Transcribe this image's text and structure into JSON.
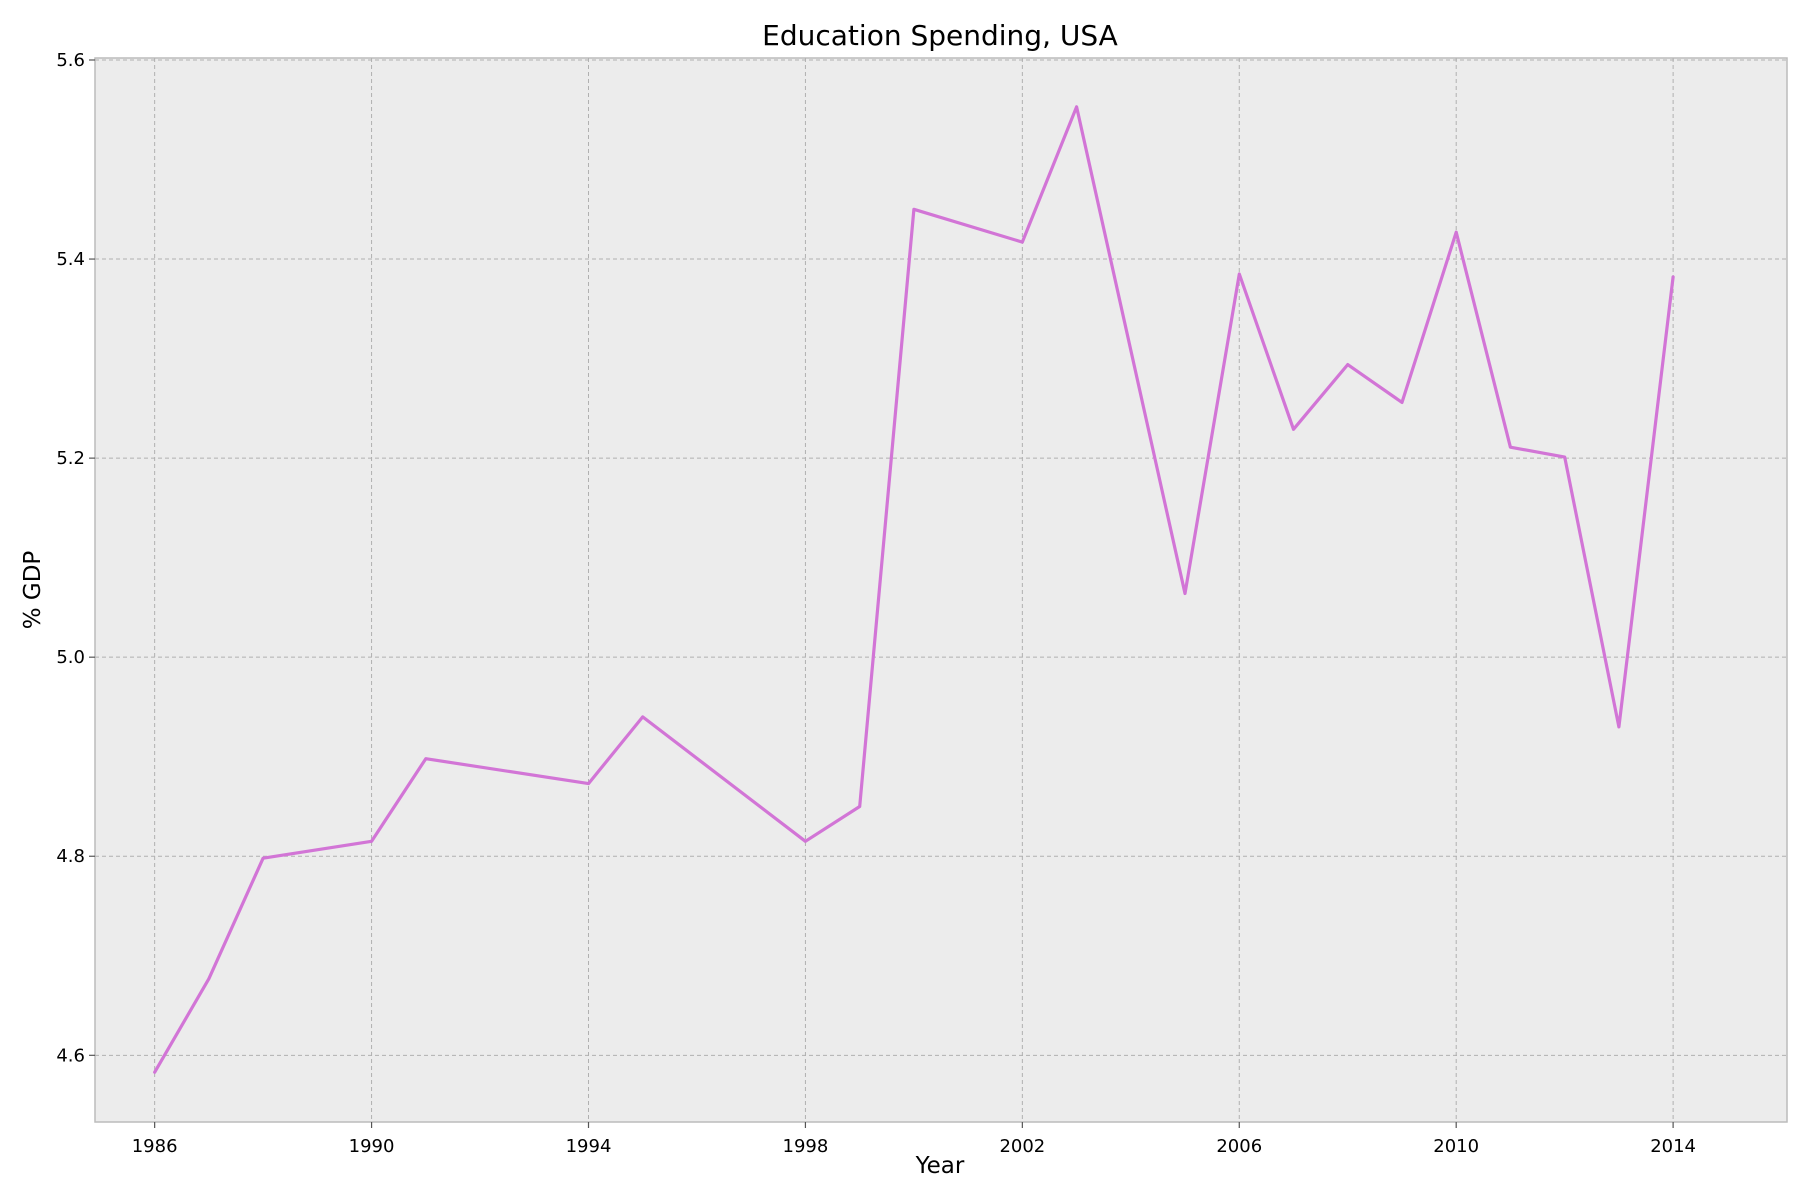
{
  "chart_data": {
    "type": "line",
    "title": "Education Spending, USA",
    "xlabel": "Year",
    "ylabel": "% GDP",
    "xlim": [
      1984.9,
      2016.1
    ],
    "ylim": [
      4.533,
      5.602
    ],
    "xticks": [
      1986,
      1990,
      1994,
      1998,
      2002,
      2006,
      2010,
      2014
    ],
    "yticks": [
      4.6,
      4.8,
      5.0,
      5.2,
      5.4,
      5.6
    ],
    "ytick_labels": [
      "4.6",
      "4.8",
      "5.0",
      "5.2",
      "5.4",
      "5.6"
    ],
    "grid": true,
    "background": "#ececec",
    "series": [
      {
        "color": "#d275d6",
        "x": [
          1986,
          1987,
          1988,
          1990,
          1991,
          1994,
          1995,
          1998,
          1999,
          2000,
          2002,
          2003,
          2005,
          2006,
          2007,
          2008,
          2009,
          2010,
          2011,
          2012,
          2013,
          2014
        ],
        "y": [
          4.583,
          4.677,
          4.798,
          4.815,
          4.898,
          4.873,
          4.94,
          4.815,
          4.85,
          5.45,
          5.417,
          5.553,
          5.064,
          5.385,
          5.229,
          5.294,
          5.256,
          5.427,
          5.211,
          5.201,
          4.93,
          5.382
        ]
      }
    ]
  }
}
